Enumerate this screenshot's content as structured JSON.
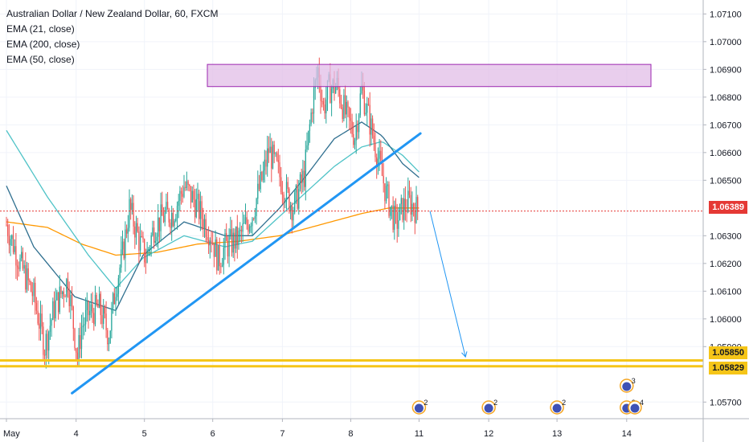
{
  "legend": {
    "title": "Australian Dollar / New Zealand Dollar, 60, FXCM",
    "ema1": "EMA (21, close)",
    "ema2": "EMA (200, close)",
    "ema3": "EMA (50, close)"
  },
  "colors": {
    "up": "#26a69a",
    "down": "#ef5350",
    "trendline": "#2196f3",
    "support": "#f5c518",
    "zone_fill": "#e1bee7",
    "zone_border": "#9c27b0",
    "ema21": "#2f6f8f",
    "ema50": "#4fc3c7",
    "ema200": "#ff9800",
    "last_price": "#e53935",
    "forecast": "#2196f3"
  },
  "chart_data": {
    "type": "candlestick",
    "y_ticks": [
      "1.07100",
      "1.07000",
      "1.06900",
      "1.06800",
      "1.06700",
      "1.06600",
      "1.06500",
      "1.06300",
      "1.06200",
      "1.06100",
      "1.06000",
      "1.05900",
      "1.05700"
    ],
    "ylim": [
      1.0564,
      1.0713
    ],
    "x_tick_labels": [
      "May",
      "4",
      "5",
      "6",
      "7",
      "8",
      "11",
      "12",
      "13",
      "14"
    ],
    "x_tick_index": [
      0,
      51,
      101,
      151,
      202,
      252,
      302,
      353,
      403,
      454
    ],
    "candle_count": 302,
    "last_price": "1.06389",
    "support_levels": [
      "1.05850",
      "1.05829"
    ],
    "resistance_zone": [
      1.06838,
      1.06918
    ],
    "trendline": {
      "from": [
        48,
        1.05732
      ],
      "to": [
        303,
        1.06669
      ]
    },
    "forecast_arrow": {
      "from": [
        310,
        1.06389
      ],
      "to": [
        336,
        1.05863
      ]
    },
    "event_markers": [
      {
        "x": 302,
        "count": "2"
      },
      {
        "x": 353,
        "count": "2"
      },
      {
        "x": 403,
        "count": "2"
      },
      {
        "x": 454,
        "count": "3"
      },
      {
        "x": 454,
        "count": "2"
      },
      {
        "x": 460,
        "count": "4"
      }
    ],
    "anchors": [
      [
        0,
        1.0634
      ],
      [
        10,
        1.062
      ],
      [
        20,
        1.0608
      ],
      [
        28,
        1.059
      ],
      [
        35,
        1.0604
      ],
      [
        45,
        1.0614
      ],
      [
        52,
        1.0586
      ],
      [
        55,
        1.0597
      ],
      [
        60,
        1.0602
      ],
      [
        68,
        1.0604
      ],
      [
        75,
        1.0594
      ],
      [
        80,
        1.0612
      ],
      [
        85,
        1.0623
      ],
      [
        90,
        1.064
      ],
      [
        98,
        1.0627
      ],
      [
        102,
        1.0622
      ],
      [
        108,
        1.0633
      ],
      [
        115,
        1.0637
      ],
      [
        122,
        1.0638
      ],
      [
        130,
        1.0648
      ],
      [
        137,
        1.0643
      ],
      [
        142,
        1.0638
      ],
      [
        150,
        1.063
      ],
      [
        155,
        1.0621
      ],
      [
        160,
        1.0626
      ],
      [
        170,
        1.0629
      ],
      [
        180,
        1.0638
      ],
      [
        188,
        1.0652
      ],
      [
        192,
        1.0661
      ],
      [
        198,
        1.0654
      ],
      [
        205,
        1.0645
      ],
      [
        210,
        1.064
      ],
      [
        218,
        1.0652
      ],
      [
        224,
        1.0678
      ],
      [
        228,
        1.069
      ],
      [
        232,
        1.0676
      ],
      [
        236,
        1.0683
      ],
      [
        242,
        1.0684
      ],
      [
        248,
        1.0674
      ],
      [
        255,
        1.0666
      ],
      [
        260,
        1.0683
      ],
      [
        265,
        1.0673
      ],
      [
        272,
        1.0658
      ],
      [
        278,
        1.0645
      ],
      [
        285,
        1.0634
      ],
      [
        290,
        1.064
      ],
      [
        295,
        1.0642
      ],
      [
        301,
        1.0639
      ]
    ],
    "ema21": [
      [
        0,
        1.0648
      ],
      [
        20,
        1.0626
      ],
      [
        50,
        1.0608
      ],
      [
        80,
        1.0603
      ],
      [
        100,
        1.0623
      ],
      [
        130,
        1.0635
      ],
      [
        160,
        1.063
      ],
      [
        180,
        1.063
      ],
      [
        200,
        1.064
      ],
      [
        220,
        1.0652
      ],
      [
        240,
        1.0665
      ],
      [
        260,
        1.0671
      ],
      [
        275,
        1.0666
      ],
      [
        290,
        1.0656
      ],
      [
        302,
        1.0651
      ]
    ],
    "ema50": [
      [
        0,
        1.0668
      ],
      [
        30,
        1.0644
      ],
      [
        60,
        1.0623
      ],
      [
        80,
        1.0611
      ],
      [
        100,
        1.0622
      ],
      [
        130,
        1.063
      ],
      [
        160,
        1.0626
      ],
      [
        180,
        1.0628
      ],
      [
        200,
        1.0637
      ],
      [
        220,
        1.0646
      ],
      [
        240,
        1.0655
      ],
      [
        260,
        1.0662
      ],
      [
        275,
        1.0664
      ],
      [
        290,
        1.0659
      ],
      [
        302,
        1.0653
      ]
    ],
    "ema200": [
      [
        0,
        1.0635
      ],
      [
        30,
        1.0633
      ],
      [
        55,
        1.0627
      ],
      [
        80,
        1.0623
      ],
      [
        110,
        1.0624
      ],
      [
        140,
        1.0627
      ],
      [
        170,
        1.0628
      ],
      [
        200,
        1.063
      ],
      [
        230,
        1.0634
      ],
      [
        260,
        1.0638
      ],
      [
        280,
        1.064
      ],
      [
        302,
        1.064
      ]
    ]
  }
}
